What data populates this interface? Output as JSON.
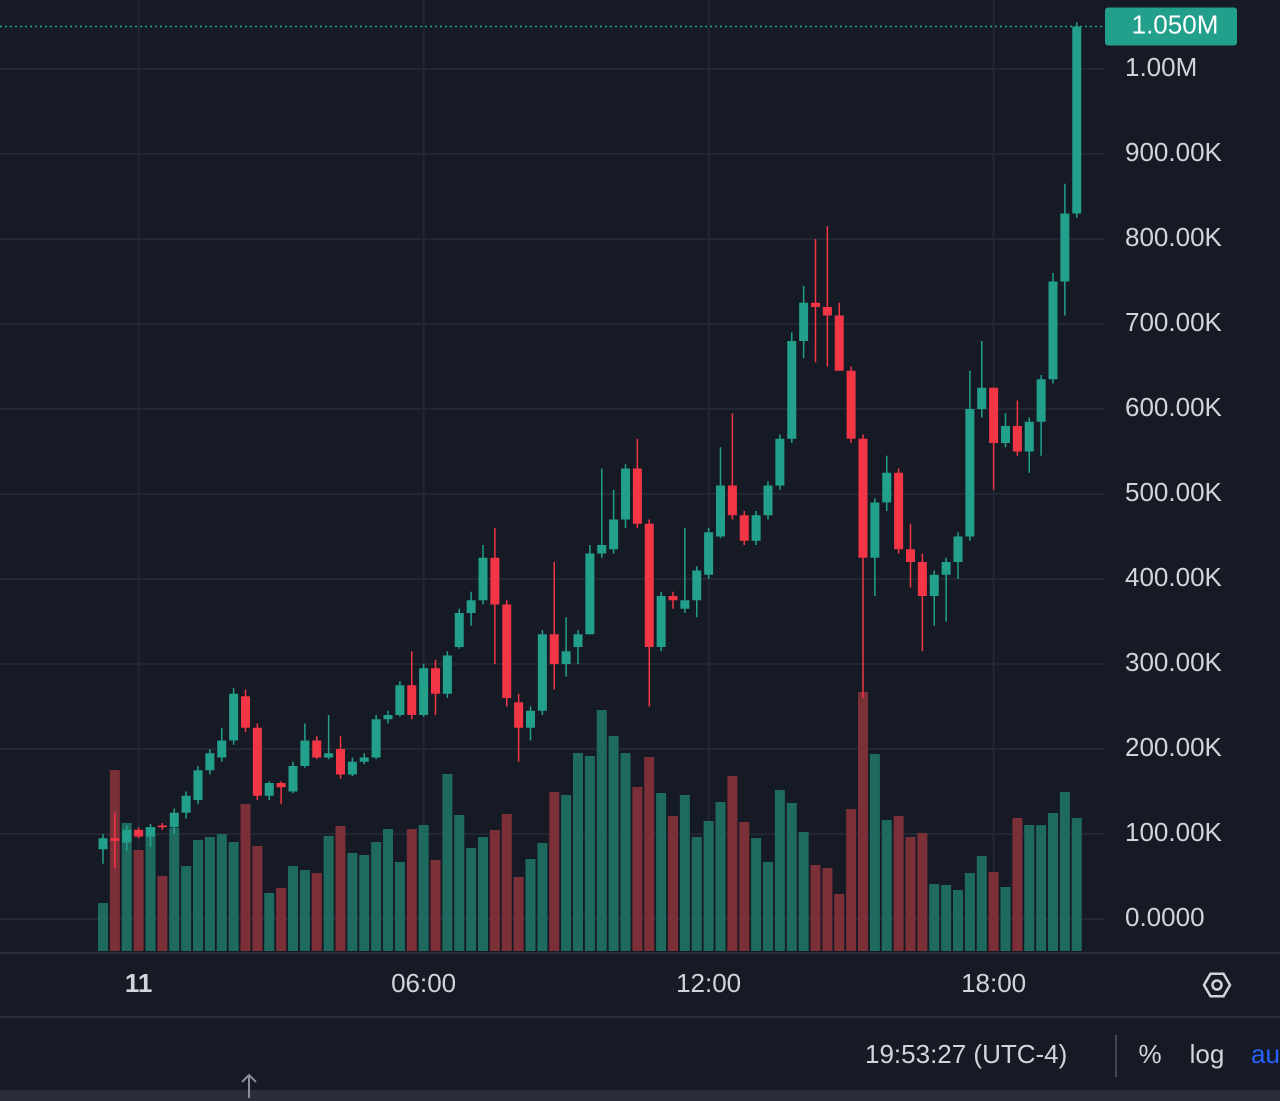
{
  "chart_data": {
    "type": "candlestick",
    "categories": [
      null,
      null,
      null,
      "11",
      null,
      null,
      null,
      null,
      null,
      null,
      null,
      null,
      null,
      null,
      null,
      null,
      null,
      null,
      null,
      null,
      null,
      null,
      null,
      null,
      null,
      null,
      null,
      "06:00",
      null,
      null,
      null,
      null,
      null,
      null,
      null,
      null,
      null,
      null,
      null,
      null,
      null,
      null,
      null,
      null,
      null,
      null,
      null,
      null,
      null,
      null,
      null,
      "12:00",
      null,
      null,
      null,
      null,
      null,
      null,
      null,
      null,
      null,
      null,
      null,
      null,
      null,
      null,
      null,
      null,
      null,
      null,
      null,
      null,
      null,
      null,
      null,
      "18:00",
      null,
      null,
      null,
      null,
      null,
      null,
      null
    ],
    "open": [
      82000,
      95000,
      90000,
      105000,
      97000,
      110000,
      108000,
      125000,
      140000,
      175000,
      190000,
      210000,
      262000,
      225000,
      145000,
      160000,
      150000,
      180000,
      210000,
      190000,
      200000,
      170000,
      185000,
      190000,
      235000,
      240000,
      275000,
      240000,
      295000,
      265000,
      320000,
      360000,
      375000,
      425000,
      370000,
      255000,
      225000,
      245000,
      335000,
      300000,
      320000,
      335000,
      430000,
      435000,
      470000,
      530000,
      465000,
      320000,
      380000,
      365000,
      375000,
      405000,
      450000,
      510000,
      475000,
      445000,
      475000,
      510000,
      565000,
      680000,
      725000,
      720000,
      710000,
      645000,
      565000,
      425000,
      490000,
      525000,
      435000,
      420000,
      380000,
      405000,
      420000,
      450000,
      600000,
      625000,
      560000,
      580000,
      550000,
      585000,
      635000,
      750000,
      830000
    ],
    "high": [
      100000,
      125000,
      110000,
      108000,
      112000,
      113000,
      130000,
      150000,
      180000,
      200000,
      225000,
      272000,
      270000,
      230000,
      162000,
      162000,
      185000,
      230000,
      215000,
      240000,
      215000,
      190000,
      195000,
      240000,
      245000,
      280000,
      315000,
      300000,
      305000,
      315000,
      365000,
      385000,
      440000,
      460000,
      375000,
      265000,
      250000,
      340000,
      420000,
      355000,
      340000,
      440000,
      530000,
      505000,
      535000,
      565000,
      470000,
      385000,
      385000,
      460000,
      415000,
      460000,
      555000,
      595000,
      480000,
      480000,
      515000,
      570000,
      690000,
      745000,
      800000,
      815000,
      725000,
      650000,
      570000,
      495000,
      545000,
      530000,
      465000,
      430000,
      410000,
      425000,
      455000,
      645000,
      680000,
      625000,
      595000,
      610000,
      590000,
      640000,
      760000,
      865000,
      1055000
    ],
    "low": [
      65000,
      60000,
      80000,
      95000,
      85000,
      105000,
      100000,
      118000,
      135000,
      170000,
      185000,
      205000,
      220000,
      140000,
      140000,
      135000,
      148000,
      178000,
      188000,
      188000,
      165000,
      168000,
      182000,
      188000,
      230000,
      238000,
      235000,
      238000,
      240000,
      260000,
      318000,
      345000,
      370000,
      300000,
      250000,
      185000,
      210000,
      240000,
      270000,
      285000,
      300000,
      335000,
      425000,
      430000,
      460000,
      460000,
      250000,
      315000,
      365000,
      360000,
      355000,
      400000,
      448000,
      470000,
      440000,
      440000,
      470000,
      505000,
      560000,
      660000,
      655000,
      650000,
      645000,
      560000,
      260000,
      380000,
      480000,
      430000,
      390000,
      315000,
      345000,
      350000,
      400000,
      445000,
      590000,
      505000,
      555000,
      545000,
      525000,
      545000,
      630000,
      710000,
      825000
    ],
    "close": [
      95000,
      92000,
      105000,
      97000,
      108000,
      108000,
      125000,
      145000,
      175000,
      195000,
      210000,
      265000,
      225000,
      145000,
      160000,
      155000,
      180000,
      210000,
      190000,
      195000,
      170000,
      185000,
      190000,
      235000,
      240000,
      275000,
      240000,
      295000,
      265000,
      310000,
      360000,
      375000,
      425000,
      370000,
      260000,
      225000,
      245000,
      335000,
      300000,
      315000,
      335000,
      430000,
      440000,
      470000,
      530000,
      465000,
      320000,
      380000,
      375000,
      375000,
      410000,
      455000,
      510000,
      475000,
      445000,
      475000,
      510000,
      565000,
      680000,
      725000,
      720000,
      710000,
      645000,
      565000,
      425000,
      490000,
      525000,
      435000,
      420000,
      380000,
      405000,
      420000,
      450000,
      600000,
      625000,
      560000,
      580000,
      550000,
      585000,
      635000,
      750000,
      830000,
      1050000
    ],
    "volume": [
      48,
      181,
      128,
      101,
      124,
      75,
      123,
      85,
      111,
      114,
      117,
      109,
      147,
      105,
      58,
      63,
      85,
      81,
      78,
      115,
      125,
      98,
      96,
      109,
      122,
      89,
      122,
      126,
      91,
      177,
      136,
      103,
      114,
      121,
      137,
      74,
      92,
      108,
      159,
      156,
      198,
      195,
      241,
      215,
      198,
      164,
      194,
      158,
      135,
      156,
      114,
      130,
      149,
      175,
      129,
      113,
      89,
      161,
      148,
      119,
      86,
      83,
      57,
      142,
      259,
      197,
      131,
      135,
      114,
      118,
      67,
      66,
      61,
      78,
      95,
      79,
      64,
      133,
      126,
      126,
      138,
      159,
      133
    ],
    "volume_ylim": [
      0,
      300
    ],
    "up_color": "#22a08c",
    "down_color": "#f23645",
    "volume_up_color": "#1e6a5f",
    "volume_down_color": "#7b2f37",
    "ylim": [
      -37647,
      1081176
    ],
    "yticks": [
      {
        "value": 0,
        "label": "0.0000"
      },
      {
        "value": 100000,
        "label": "100.00K"
      },
      {
        "value": 200000,
        "label": "200.00K"
      },
      {
        "value": 300000,
        "label": "300.00K"
      },
      {
        "value": 400000,
        "label": "400.00K"
      },
      {
        "value": 500000,
        "label": "500.00K"
      },
      {
        "value": 600000,
        "label": "600.00K"
      },
      {
        "value": 700000,
        "label": "700.00K"
      },
      {
        "value": 800000,
        "label": "800.00K"
      },
      {
        "value": 900000,
        "label": "900.00K"
      },
      {
        "value": 1000000,
        "label": "1.00M"
      }
    ],
    "last_price": {
      "value": 1050000,
      "label": "1.050M"
    },
    "grid": true
  },
  "status_bar": {
    "time": "19:53:27 (UTC-4)",
    "percent": "%",
    "log": "log",
    "auto": "au"
  }
}
